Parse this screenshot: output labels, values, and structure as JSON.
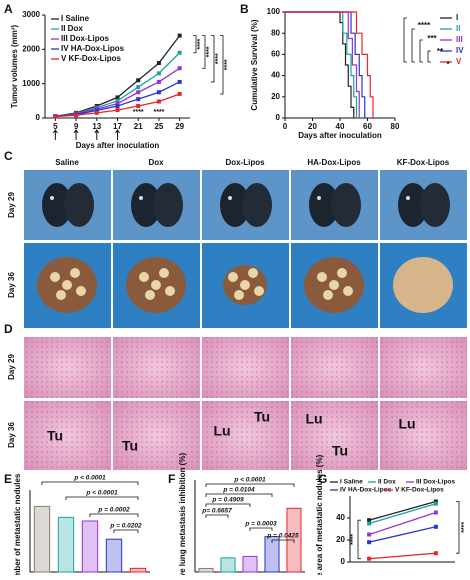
{
  "panel_labels": [
    "A",
    "B",
    "C",
    "D",
    "E",
    "F",
    "G"
  ],
  "photos": {
    "columns": [
      "Saline",
      "Dox",
      "Dox-Lipos",
      "HA-Dox-Lipos",
      "KF-Dox-Lipos"
    ],
    "rows": [
      "Day 29",
      "Day 36"
    ]
  },
  "histology": {
    "rows": [
      "Day 29",
      "Day 36"
    ],
    "labels": [
      "Tu",
      "Tu",
      "Lu",
      "Tu",
      "Lu",
      "Tu",
      "Lu"
    ]
  },
  "chart_data": [
    {
      "type": "line",
      "ylabel": "Tumor volumes (mm³)",
      "xlabel": "Days after inoculation",
      "x": [
        5,
        9,
        13,
        17,
        21,
        25,
        29
      ],
      "xlim": [
        3,
        31
      ],
      "xticks": [
        5,
        9,
        13,
        17,
        21,
        25,
        29
      ],
      "ylim": [
        0,
        3000
      ],
      "yticks": [
        0,
        1000,
        2000,
        3000
      ],
      "series": [
        {
          "name": "I  Saline",
          "color": "#222222",
          "values": [
            50,
            150,
            350,
            600,
            1100,
            1600,
            2400
          ]
        },
        {
          "name": "II  Dox",
          "color": "#1ba3a3",
          "values": [
            50,
            130,
            300,
            500,
            900,
            1300,
            1900
          ]
        },
        {
          "name": "III  Dox-Lipos",
          "color": "#9b30d9",
          "values": [
            50,
            120,
            260,
            420,
            750,
            1050,
            1450
          ]
        },
        {
          "name": "IV  HA-Dox-Lipos",
          "color": "#2b35c9",
          "values": [
            50,
            100,
            220,
            350,
            550,
            750,
            1050
          ]
        },
        {
          "name": "V  KF-Dox-Lipos",
          "color": "#e8262a",
          "values": [
            40,
            80,
            150,
            230,
            350,
            480,
            700
          ]
        }
      ],
      "annotations": [
        "****",
        "****",
        "****",
        "****",
        "****",
        "****"
      ]
    },
    {
      "type": "step",
      "ylabel": "Cumulative Survival (%)",
      "xlabel": "Days after inoculation",
      "xlim": [
        0,
        80
      ],
      "xticks": [
        0,
        20,
        40,
        60,
        80
      ],
      "ylim": [
        0,
        100
      ],
      "yticks": [
        0,
        20,
        40,
        60,
        80,
        100
      ],
      "series": [
        {
          "name": "I",
          "color": "#222222",
          "x": [
            0,
            40,
            42,
            44,
            46,
            48,
            50
          ],
          "values": [
            100,
            90,
            70,
            50,
            30,
            10,
            0
          ]
        },
        {
          "name": "II",
          "color": "#1ba3a3",
          "x": [
            0,
            42,
            45,
            48,
            50,
            52
          ],
          "values": [
            100,
            80,
            60,
            40,
            20,
            0
          ]
        },
        {
          "name": "III",
          "color": "#9b30d9",
          "x": [
            0,
            46,
            49,
            52,
            54
          ],
          "values": [
            100,
            75,
            50,
            25,
            0
          ]
        },
        {
          "name": "IV",
          "color": "#2b35c9",
          "x": [
            0,
            48,
            51,
            54,
            56,
            58
          ],
          "values": [
            100,
            80,
            60,
            40,
            20,
            0
          ]
        },
        {
          "name": "V",
          "color": "#e8262a",
          "x": [
            0,
            52,
            56,
            60,
            62,
            64
          ],
          "values": [
            100,
            80,
            60,
            40,
            20,
            0
          ]
        }
      ],
      "annotations": [
        "****",
        "***",
        "**",
        "*"
      ]
    },
    {
      "type": "bar",
      "ylabel": "Number of metastatic nodules",
      "values": [
        36,
        30,
        28,
        18,
        2
      ],
      "colors": [
        "#8a7d6e",
        "#1ba3a3",
        "#9b30d9",
        "#2b35c9",
        "#e8262a"
      ],
      "ylim": [
        0,
        45
      ],
      "annotations": [
        "p < 0.0001",
        "p < 0.0001",
        "p = 0.0002",
        "p = 0.0202"
      ]
    },
    {
      "type": "bar",
      "ylabel": "Relative lung metastasis inhibition (%)",
      "values": [
        5,
        20,
        22,
        50,
        90
      ],
      "colors": [
        "#8a7d6e",
        "#1ba3a3",
        "#9b30d9",
        "#2b35c9",
        "#e8262a"
      ],
      "ylim": [
        0,
        130
      ],
      "annotations": [
        "p < 0.0001",
        "p = 0.0104",
        "p = 0.4909",
        "p= 0.6657",
        "p = 0.0003",
        "p = 0.0425"
      ]
    },
    {
      "type": "line",
      "ylabel": "Relative area of metastatic nodules (%)",
      "x": [
        29,
        36
      ],
      "xlim": [
        27,
        38
      ],
      "ylim": [
        0,
        60
      ],
      "yticks": [
        0,
        20,
        40
      ],
      "series": [
        {
          "name": "I Saline",
          "color": "#222222",
          "values": [
            38,
            55
          ]
        },
        {
          "name": "II Dox",
          "color": "#1ba3a3",
          "values": [
            35,
            53
          ]
        },
        {
          "name": "III Dox-Lipos",
          "color": "#9b30d9",
          "values": [
            25,
            45
          ]
        },
        {
          "name": "IV HA-Dox-Lipos",
          "color": "#2b35c9",
          "values": [
            18,
            32
          ]
        },
        {
          "name": "V KF-Dox-Lipos",
          "color": "#e8262a",
          "values": [
            3,
            8
          ]
        }
      ],
      "annotations": [
        "****",
        "****"
      ]
    }
  ]
}
